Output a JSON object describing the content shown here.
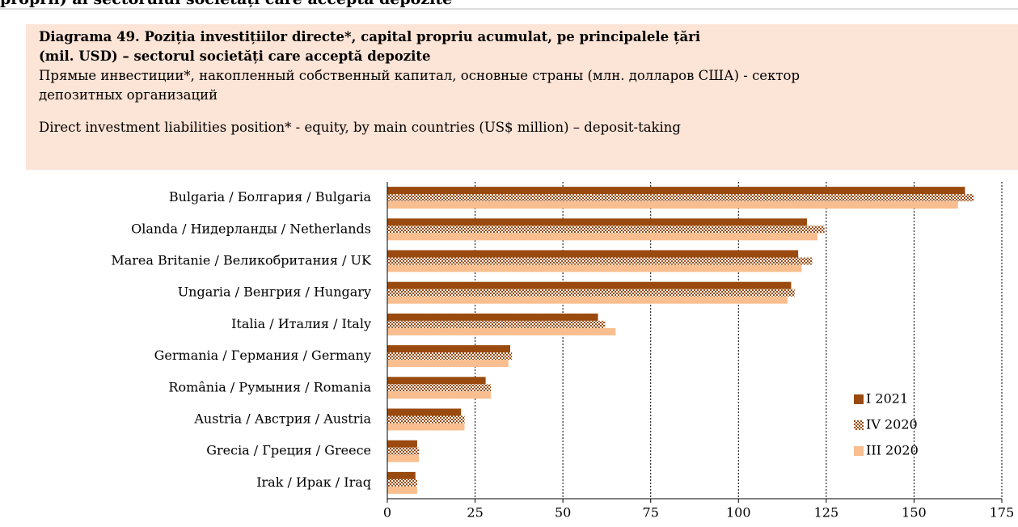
{
  "heading": "proprii) al sectorului societăți care acceptă depozite",
  "chart_data": {
    "type": "bar",
    "orientation": "horizontal",
    "title": "Diagrama 49. Poziția investițiilor directe*, capital propriu acumulat, pe principalele țări (mil. USD) – sectorul societăți care acceptă depozite",
    "subtitle_ru": "Прямые инвестиции*, накопленный собственный капитал, основные страны (млн. долларов США) - сектор депозитных организаций",
    "subtitle_en": "Direct investment liabilities position* - equity, by main countries (US$ million) – deposit-taking",
    "categories": [
      "Bulgaria / Болгария / Bulgaria",
      "Olanda / Нидерланды / Netherlands",
      "Marea Britanie / Великобритания / UK",
      "Ungaria / Венгрия / Hungary",
      "Italia / Италия / Italy",
      "Germania / Германия / Germany",
      "România / Румыния / Romania",
      "Austria / Австрия / Austria",
      "Grecia / Греция / Greece",
      "Irak / Ирак / Iraq"
    ],
    "series": [
      {
        "name": "I 2021",
        "color": "#9a4a0e",
        "values": [
          164.5,
          119.5,
          117,
          115,
          60,
          35,
          28,
          21,
          8.5,
          8
        ]
      },
      {
        "name": "IV 2020",
        "color": "#9a4a0e",
        "pattern": "checker",
        "values": [
          167,
          124.5,
          121,
          116,
          62,
          35.5,
          29.5,
          22,
          9,
          8.5
        ]
      },
      {
        "name": "III 2020",
        "color": "#f9be8f",
        "values": [
          162.5,
          122.5,
          118,
          114,
          65,
          34.5,
          29.5,
          22,
          9,
          8.5
        ]
      }
    ],
    "xlim": [
      0,
      175
    ],
    "xticks": [
      0,
      25,
      50,
      75,
      100,
      125,
      150,
      175
    ],
    "grid": true
  }
}
